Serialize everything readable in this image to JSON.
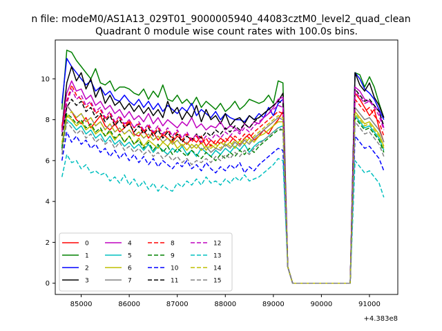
{
  "figure": {
    "suptitle": "n file: modeM0/AS1A13_029T01_9000005940_44083cztM0_level2_quad_clean"
  },
  "chart_data": {
    "type": "line",
    "title": "Quadrant 0 module wise count rates with 100.0s bins.",
    "xlabel": "",
    "ylabel": "",
    "x_offset_label": "+4.383e8",
    "xlim": [
      84460,
      91590
    ],
    "ylim": [
      -0.55,
      11.9
    ],
    "grid": false,
    "legend_position": "lower-left",
    "x_ticks": [
      85000,
      86000,
      87000,
      88000,
      89000,
      90000,
      91000
    ],
    "x_tick_labels": [
      "85000",
      "86000",
      "87000",
      "88000",
      "89000",
      "90000",
      "91000"
    ],
    "y_ticks": [
      0,
      2,
      4,
      6,
      8,
      10
    ],
    "y_tick_labels": [
      "0",
      "2",
      "4",
      "6",
      "8",
      "10"
    ],
    "x_start": 84600,
    "x_step": 100,
    "series": [
      {
        "name": "0",
        "color": "#ff0000",
        "dash": "solid",
        "values": [
          7.5,
          8.7,
          8.4,
          8.0,
          7.8,
          8.1,
          7.6,
          7.9,
          8.2,
          7.7,
          7.5,
          7.8,
          7.4,
          7.6,
          7.9,
          7.3,
          7.2,
          7.5,
          7.1,
          7.4,
          7.0,
          7.3,
          7.1,
          6.9,
          7.2,
          7.0,
          6.8,
          7.1,
          6.9,
          7.2,
          6.7,
          7.0,
          6.8,
          7.1,
          6.9,
          7.2,
          7.0,
          6.8,
          7.1,
          7.3,
          7.0,
          7.2,
          7.5,
          7.3,
          7.7,
          8.0,
          8.4,
          0.8,
          0,
          0,
          0,
          0,
          0,
          0,
          0,
          0,
          0,
          0,
          0,
          0,
          0,
          9.3,
          9.0,
          8.6,
          8.2,
          8.5,
          7.6,
          6.9
        ]
      },
      {
        "name": "1",
        "color": "#008000",
        "dash": "solid",
        "values": [
          8.5,
          11.4,
          11.3,
          10.9,
          10.6,
          10.3,
          10.0,
          10.5,
          9.8,
          9.7,
          9.9,
          9.4,
          9.6,
          9.6,
          9.5,
          9.3,
          9.2,
          9.5,
          9.0,
          9.4,
          9.1,
          9.7,
          9.0,
          8.9,
          9.2,
          8.8,
          9.0,
          8.7,
          9.1,
          8.6,
          8.9,
          8.7,
          8.5,
          8.8,
          8.4,
          8.6,
          8.9,
          8.5,
          8.7,
          9.0,
          8.9,
          8.8,
          8.9,
          9.2,
          8.8,
          9.9,
          9.8,
          0.8,
          0,
          0,
          0,
          0,
          0,
          0,
          0,
          0,
          0,
          0,
          0,
          0,
          0,
          10.3,
          10.2,
          9.6,
          10.1,
          9.6,
          8.8,
          8.1
        ]
      },
      {
        "name": "2",
        "color": "#0000ff",
        "dash": "solid",
        "values": [
          8.8,
          11.0,
          10.6,
          10.3,
          10.0,
          9.7,
          9.9,
          9.4,
          9.6,
          9.2,
          9.4,
          9.0,
          8.9,
          9.2,
          8.9,
          8.7,
          9.0,
          8.6,
          8.9,
          8.5,
          8.8,
          8.4,
          8.7,
          8.5,
          8.3,
          8.6,
          8.4,
          8.8,
          8.2,
          8.5,
          8.3,
          8.1,
          8.4,
          8.0,
          8.3,
          8.1,
          8.0,
          8.0,
          7.9,
          8.2,
          8.0,
          8.3,
          8.1,
          8.6,
          8.2,
          8.8,
          9.0,
          0.8,
          0,
          0,
          0,
          0,
          0,
          0,
          0,
          0,
          0,
          0,
          0,
          0,
          0,
          10.3,
          10.0,
          9.5,
          9.3,
          9.0,
          8.5,
          8.0
        ]
      },
      {
        "name": "3",
        "color": "#000000",
        "dash": "solid",
        "values": [
          7.6,
          9.8,
          10.6,
          9.9,
          10.3,
          9.5,
          10.0,
          9.1,
          9.6,
          8.8,
          9.2,
          8.7,
          8.9,
          8.5,
          8.8,
          8.4,
          8.7,
          8.3,
          8.6,
          8.2,
          8.5,
          8.1,
          8.9,
          8.3,
          8.6,
          8.0,
          8.4,
          8.1,
          8.7,
          7.9,
          8.5,
          8.0,
          8.2,
          7.8,
          8.3,
          7.7,
          8.0,
          8.1,
          7.8,
          8.2,
          8.0,
          8.1,
          8.3,
          8.5,
          8.7,
          8.9,
          9.3,
          0.8,
          0,
          0,
          0,
          0,
          0,
          0,
          0,
          0,
          0,
          0,
          0,
          0,
          0,
          10.3,
          9.7,
          9.4,
          9.8,
          9.1,
          8.7,
          8.1
        ]
      },
      {
        "name": "4",
        "color": "#bf00bf",
        "dash": "solid",
        "values": [
          7.6,
          9.3,
          9.9,
          9.4,
          9.5,
          9.0,
          9.2,
          8.7,
          8.9,
          8.5,
          8.7,
          8.3,
          8.5,
          8.1,
          8.4,
          8.0,
          8.2,
          7.9,
          8.3,
          7.8,
          8.1,
          7.7,
          8.0,
          7.8,
          7.6,
          7.9,
          7.7,
          8.1,
          7.6,
          7.8,
          7.5,
          7.7,
          7.6,
          7.9,
          7.5,
          7.7,
          7.6,
          7.4,
          7.8,
          7.6,
          7.9,
          7.8,
          8.1,
          8.3,
          8.6,
          9.0,
          9.1,
          0.8,
          0,
          0,
          0,
          0,
          0,
          0,
          0,
          0,
          0,
          0,
          0,
          0,
          0,
          9.6,
          9.4,
          9.0,
          8.9,
          8.7,
          8.4,
          7.6
        ]
      },
      {
        "name": "5",
        "color": "#00bfbf",
        "dash": "solid",
        "values": [
          6.7,
          8.0,
          7.8,
          7.5,
          7.7,
          7.3,
          7.5,
          7.1,
          7.3,
          6.9,
          7.2,
          6.8,
          7.0,
          6.7,
          6.9,
          6.6,
          6.8,
          6.5,
          6.8,
          6.4,
          6.7,
          6.5,
          6.3,
          6.6,
          6.4,
          6.7,
          6.3,
          6.5,
          6.2,
          6.6,
          6.4,
          6.2,
          6.5,
          6.3,
          6.6,
          6.4,
          6.7,
          6.5,
          6.8,
          6.4,
          6.7,
          6.9,
          7.0,
          7.2,
          7.4,
          7.6,
          7.7,
          0.8,
          0,
          0,
          0,
          0,
          0,
          0,
          0,
          0,
          0,
          0,
          0,
          0,
          0,
          8.2,
          7.9,
          7.6,
          7.7,
          7.4,
          7.1,
          6.5
        ]
      },
      {
        "name": "6",
        "color": "#bfbf00",
        "dash": "solid",
        "values": [
          6.8,
          8.2,
          8.0,
          7.7,
          7.9,
          7.5,
          7.7,
          7.3,
          7.5,
          7.2,
          7.4,
          7.0,
          7.3,
          6.9,
          7.2,
          6.8,
          7.1,
          6.7,
          7.0,
          6.8,
          6.6,
          6.9,
          6.7,
          7.0,
          6.6,
          6.8,
          6.5,
          6.8,
          6.6,
          6.9,
          6.5,
          6.8,
          6.6,
          6.9,
          6.7,
          6.9,
          6.6,
          7.0,
          6.8,
          7.1,
          6.9,
          7.2,
          7.3,
          7.5,
          7.7,
          7.9,
          7.9,
          0.8,
          0,
          0,
          0,
          0,
          0,
          0,
          0,
          0,
          0,
          0,
          0,
          0,
          0,
          8.4,
          8.1,
          7.8,
          7.9,
          7.6,
          7.3,
          6.7
        ]
      },
      {
        "name": "7",
        "color": "#808080",
        "dash": "solid",
        "values": [
          6.5,
          8.7,
          8.4,
          8.1,
          8.3,
          7.9,
          8.1,
          7.7,
          7.9,
          7.5,
          7.8,
          7.4,
          7.6,
          7.3,
          7.5,
          7.2,
          7.4,
          7.1,
          7.3,
          7.0,
          7.2,
          6.9,
          7.1,
          6.8,
          7.0,
          6.7,
          6.9,
          6.6,
          6.8,
          6.5,
          6.7,
          6.4,
          6.6,
          6.5,
          6.8,
          6.6,
          6.9,
          6.7,
          7.0,
          6.8,
          7.1,
          7.3,
          7.5,
          7.7,
          7.9,
          8.1,
          8.0,
          0.8,
          0,
          0,
          0,
          0,
          0,
          0,
          0,
          0,
          0,
          0,
          0,
          0,
          0,
          8.6,
          8.3,
          8.0,
          8.1,
          7.8,
          7.5,
          6.9
        ]
      },
      {
        "name": "8",
        "color": "#ff0000",
        "dash": "dashed",
        "values": [
          7.7,
          8.9,
          9.7,
          9.2,
          9.0,
          8.6,
          8.8,
          8.3,
          8.5,
          8.0,
          8.3,
          7.8,
          8.1,
          7.7,
          8.0,
          7.6,
          7.8,
          7.4,
          7.7,
          7.3,
          7.6,
          7.2,
          7.5,
          7.1,
          7.4,
          7.0,
          7.3,
          6.9,
          7.2,
          6.8,
          7.1,
          6.7,
          7.0,
          6.8,
          7.1,
          6.9,
          7.2,
          7.0,
          7.3,
          7.1,
          7.4,
          7.6,
          7.8,
          8.0,
          8.2,
          8.4,
          8.3,
          0.8,
          0,
          0,
          0,
          0,
          0,
          0,
          0,
          0,
          0,
          0,
          0,
          0,
          0,
          9.0,
          8.7,
          8.4,
          8.6,
          8.2,
          7.9,
          7.2
        ]
      },
      {
        "name": "9",
        "color": "#008000",
        "dash": "dashed",
        "values": [
          6.6,
          8.3,
          8.1,
          7.8,
          8.0,
          7.6,
          7.8,
          7.4,
          7.6,
          7.2,
          7.5,
          7.1,
          7.3,
          6.9,
          7.2,
          6.8,
          7.0,
          6.6,
          6.9,
          6.5,
          6.8,
          6.4,
          6.7,
          6.3,
          6.6,
          6.4,
          6.2,
          6.5,
          6.3,
          6.1,
          6.4,
          6.2,
          6.0,
          6.3,
          6.1,
          6.4,
          6.2,
          6.5,
          6.3,
          6.6,
          6.4,
          6.7,
          6.9,
          7.1,
          7.3,
          7.5,
          7.5,
          0.8,
          0,
          0,
          0,
          0,
          0,
          0,
          0,
          0,
          0,
          0,
          0,
          0,
          0,
          8.1,
          7.8,
          7.5,
          7.6,
          7.3,
          7.0,
          6.4
        ]
      },
      {
        "name": "10",
        "color": "#0000ff",
        "dash": "dashed",
        "values": [
          6.0,
          7.4,
          6.9,
          7.2,
          6.8,
          7.0,
          6.6,
          6.8,
          6.4,
          6.6,
          6.2,
          6.5,
          6.1,
          6.4,
          6.0,
          6.3,
          5.9,
          6.2,
          5.8,
          6.1,
          5.7,
          6.0,
          5.8,
          5.6,
          5.9,
          5.7,
          6.0,
          5.6,
          5.8,
          5.5,
          5.9,
          5.6,
          5.4,
          5.7,
          5.5,
          5.8,
          5.6,
          5.9,
          5.4,
          5.7,
          5.5,
          5.8,
          6.0,
          6.2,
          6.4,
          6.6,
          6.5,
          0.8,
          0,
          0,
          0,
          0,
          0,
          0,
          0,
          0,
          0,
          0,
          0,
          0,
          0,
          7.2,
          6.9,
          6.6,
          6.7,
          6.4,
          6.1,
          5.5
        ]
      },
      {
        "name": "11",
        "color": "#000000",
        "dash": "dashed",
        "values": [
          7.2,
          8.6,
          9.0,
          8.7,
          8.9,
          8.4,
          8.6,
          8.1,
          8.3,
          7.9,
          8.2,
          7.7,
          8.0,
          7.6,
          7.8,
          7.4,
          7.7,
          7.3,
          7.6,
          7.2,
          7.5,
          7.1,
          7.4,
          7.0,
          7.3,
          6.9,
          7.2,
          7.0,
          7.3,
          7.1,
          7.4,
          7.2,
          7.5,
          7.3,
          7.6,
          7.4,
          7.7,
          7.5,
          7.8,
          7.6,
          7.9,
          8.1,
          8.3,
          8.5,
          8.7,
          8.9,
          8.8,
          0.8,
          0,
          0,
          0,
          0,
          0,
          0,
          0,
          0,
          0,
          0,
          0,
          0,
          0,
          9.5,
          9.2,
          8.9,
          9.0,
          8.7,
          8.4,
          7.7
        ]
      },
      {
        "name": "12",
        "color": "#bf00bf",
        "dash": "dashed",
        "values": [
          7.4,
          8.8,
          9.5,
          9.0,
          9.2,
          8.7,
          8.9,
          8.4,
          8.6,
          8.1,
          8.4,
          7.9,
          8.2,
          7.8,
          8.0,
          7.6,
          7.9,
          7.5,
          7.8,
          7.4,
          7.7,
          7.3,
          7.6,
          7.2,
          7.5,
          7.1,
          7.4,
          7.0,
          7.3,
          6.9,
          7.2,
          7.0,
          7.3,
          7.1,
          7.4,
          7.2,
          7.5,
          7.3,
          7.6,
          7.4,
          7.7,
          7.9,
          8.1,
          8.3,
          8.5,
          8.7,
          8.6,
          0.8,
          0,
          0,
          0,
          0,
          0,
          0,
          0,
          0,
          0,
          0,
          0,
          0,
          0,
          9.4,
          9.1,
          8.8,
          8.9,
          8.6,
          8.2,
          7.5
        ]
      },
      {
        "name": "13",
        "color": "#00bfbf",
        "dash": "dashed",
        "values": [
          5.2,
          6.3,
          5.9,
          6.0,
          5.6,
          5.8,
          5.4,
          5.5,
          5.3,
          5.4,
          5.0,
          5.2,
          4.9,
          5.3,
          4.8,
          5.1,
          4.7,
          5.0,
          4.6,
          4.9,
          4.5,
          4.8,
          4.6,
          4.5,
          4.9,
          4.7,
          5.0,
          4.8,
          5.1,
          4.8,
          5.2,
          4.9,
          5.0,
          4.8,
          5.1,
          4.9,
          5.2,
          5.0,
          5.3,
          5.0,
          5.1,
          5.2,
          5.4,
          5.6,
          5.8,
          6.1,
          6.0,
          0.8,
          0,
          0,
          0,
          0,
          0,
          0,
          0,
          0,
          0,
          0,
          0,
          0,
          0,
          6.0,
          5.7,
          5.4,
          5.5,
          5.2,
          4.9,
          4.2
        ]
      },
      {
        "name": "14",
        "color": "#bfbf00",
        "dash": "dashed",
        "values": [
          6.9,
          8.1,
          8.4,
          8.1,
          8.3,
          7.9,
          8.1,
          7.7,
          7.9,
          7.5,
          7.8,
          7.4,
          7.6,
          7.3,
          7.5,
          7.2,
          7.4,
          7.1,
          7.3,
          7.0,
          7.2,
          6.9,
          7.1,
          6.8,
          7.0,
          6.7,
          6.9,
          6.6,
          6.8,
          6.5,
          6.7,
          6.6,
          6.8,
          6.6,
          6.9,
          6.7,
          7.0,
          6.8,
          7.1,
          6.9,
          7.2,
          7.4,
          7.6,
          7.8,
          8.0,
          8.2,
          8.1,
          0.8,
          0,
          0,
          0,
          0,
          0,
          0,
          0,
          0,
          0,
          0,
          0,
          0,
          0,
          8.3,
          8.0,
          7.7,
          7.8,
          7.5,
          7.2,
          6.6
        ]
      },
      {
        "name": "15",
        "color": "#808080",
        "dash": "dashed",
        "values": [
          6.3,
          7.9,
          7.6,
          7.3,
          7.5,
          7.1,
          7.3,
          6.9,
          7.1,
          6.8,
          7.0,
          6.6,
          6.9,
          6.5,
          6.7,
          6.4,
          6.6,
          6.3,
          6.5,
          6.2,
          6.4,
          6.1,
          6.3,
          6.0,
          6.2,
          5.9,
          6.1,
          5.8,
          6.0,
          5.9,
          6.1,
          5.9,
          6.2,
          6.0,
          6.3,
          6.1,
          6.4,
          6.2,
          6.5,
          6.3,
          6.6,
          6.8,
          7.0,
          7.2,
          7.4,
          7.6,
          7.5,
          0.8,
          0,
          0,
          0,
          0,
          0,
          0,
          0,
          0,
          0,
          0,
          0,
          0,
          0,
          7.9,
          7.6,
          7.3,
          7.4,
          7.1,
          6.8,
          6.2
        ]
      }
    ]
  }
}
